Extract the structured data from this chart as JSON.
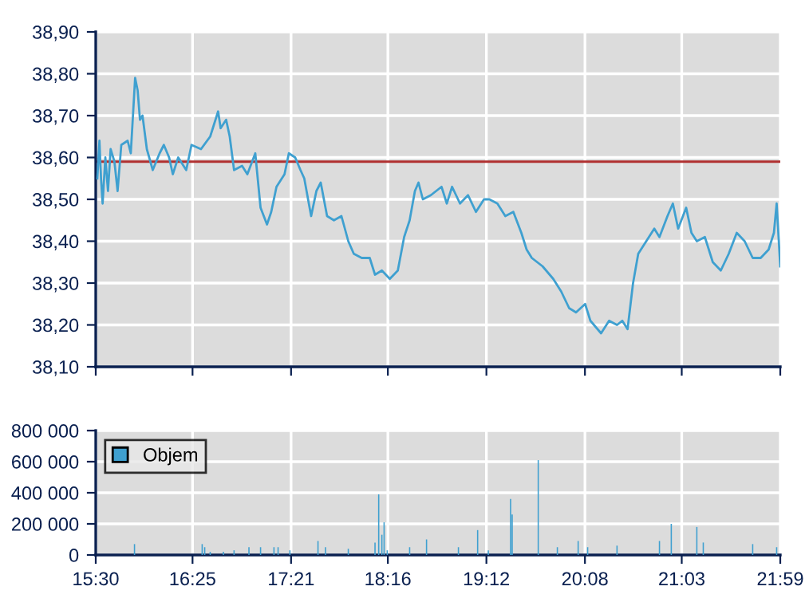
{
  "chart_data": [
    {
      "type": "line",
      "x": [
        15.515,
        15.535,
        15.55,
        15.565,
        15.591,
        15.616,
        15.641,
        15.677,
        15.707,
        15.742,
        15.802,
        15.832,
        15.873,
        15.897,
        15.919,
        15.943,
        15.984,
        16.04,
        16.105,
        16.145,
        16.195,
        16.23,
        16.281,
        16.357,
        16.407,
        16.497,
        16.584,
        16.659,
        16.683,
        16.735,
        16.769,
        16.81,
        16.886,
        16.936,
        17.011,
        17.061,
        17.122,
        17.162,
        17.212,
        17.288,
        17.329,
        17.389,
        17.439,
        17.475,
        17.54,
        17.59,
        17.631,
        17.691,
        17.756,
        17.827,
        17.892,
        17.944,
        18.019,
        18.095,
        18.145,
        18.21,
        18.285,
        18.361,
        18.421,
        18.473,
        18.523,
        18.557,
        18.598,
        18.674,
        18.775,
        18.825,
        18.875,
        18.95,
        19.026,
        19.101,
        19.177,
        19.228,
        19.304,
        19.379,
        19.455,
        19.531,
        19.581,
        19.63,
        19.732,
        19.833,
        19.908,
        19.984,
        20.049,
        20.135,
        20.185,
        20.286,
        20.362,
        20.437,
        20.487,
        20.537,
        20.589,
        20.638,
        20.714,
        20.79,
        20.839,
        20.915,
        20.966,
        21.016,
        21.092,
        21.142,
        21.193,
        21.269,
        21.344,
        21.42,
        21.495,
        21.571,
        21.646,
        21.722,
        21.798,
        21.873,
        21.923,
        21.949,
        21.983
      ],
      "series": [
        {
          "color": "#3fa0d0",
          "values": [
            38.55,
            38.64,
            38.55,
            38.49,
            38.6,
            38.52,
            38.62,
            38.59,
            38.52,
            38.63,
            38.64,
            38.61,
            38.79,
            38.76,
            38.69,
            38.7,
            38.62,
            38.57,
            38.61,
            38.63,
            38.6,
            38.56,
            38.6,
            38.57,
            38.63,
            38.62,
            38.65,
            38.71,
            38.67,
            38.69,
            38.65,
            38.57,
            38.58,
            38.56,
            38.61,
            38.48,
            38.44,
            38.47,
            38.53,
            38.56,
            38.61,
            38.6,
            38.57,
            38.55,
            38.46,
            38.52,
            38.54,
            38.46,
            38.45,
            38.46,
            38.4,
            38.37,
            38.36,
            38.36,
            38.32,
            38.33,
            38.31,
            38.33,
            38.41,
            38.45,
            38.52,
            38.54,
            38.5,
            38.51,
            38.53,
            38.49,
            38.53,
            38.49,
            38.51,
            38.47,
            38.5,
            38.5,
            38.49,
            38.46,
            38.47,
            38.42,
            38.38,
            38.36,
            38.34,
            38.31,
            38.28,
            38.24,
            38.23,
            38.25,
            38.21,
            38.18,
            38.21,
            38.2,
            38.21,
            38.19,
            38.3,
            38.37,
            38.4,
            38.43,
            38.41,
            38.46,
            38.49,
            38.43,
            38.48,
            38.42,
            38.4,
            38.41,
            38.35,
            38.33,
            38.37,
            38.42,
            38.4,
            38.36,
            38.36,
            38.38,
            38.42,
            38.49,
            38.34
          ]
        }
      ],
      "xlim": [
        15.5,
        21.9833
      ],
      "xticks": [
        {
          "value": 15.5,
          "label": null
        },
        {
          "value": 16.4167,
          "label": null
        },
        {
          "value": 17.35,
          "label": null
        },
        {
          "value": 18.2667,
          "label": null
        },
        {
          "value": 19.2,
          "label": null
        },
        {
          "value": 20.1333,
          "label": null
        },
        {
          "value": 21.05,
          "label": null
        },
        {
          "value": 21.9833,
          "label": null
        }
      ],
      "ylim": [
        38.1,
        38.9
      ],
      "yticks": [
        {
          "value": 38.1,
          "label": "38,10"
        },
        {
          "value": 38.2,
          "label": "38,20"
        },
        {
          "value": 38.3,
          "label": "38,30"
        },
        {
          "value": 38.4,
          "label": "38,40"
        },
        {
          "value": 38.5,
          "label": "38,50"
        },
        {
          "value": 38.6,
          "label": "38,60"
        },
        {
          "value": 38.7,
          "label": "38,70"
        },
        {
          "value": 38.8,
          "label": "38,80"
        },
        {
          "value": 38.9,
          "label": "38,90"
        }
      ],
      "ref_lines": [
        {
          "axis": "y",
          "value": 38.59,
          "color": "#b03030"
        }
      ],
      "grid": true,
      "tick_labels": "y",
      "legend": false
    },
    {
      "type": "bar",
      "x": [
        15.867,
        16.508,
        16.532,
        16.584,
        16.709,
        16.81,
        16.951,
        17.061,
        17.188,
        17.227,
        17.339,
        17.605,
        17.676,
        17.892,
        18.145,
        18.18,
        18.21,
        18.231,
        18.261,
        18.473,
        18.633,
        18.935,
        19.117,
        19.218,
        19.429,
        19.444,
        19.691,
        19.872,
        20.069,
        20.159,
        20.437,
        20.839,
        20.951,
        21.193,
        21.254,
        21.722,
        21.949
      ],
      "series": [
        {
          "name": "Objem",
          "color": "#3fa0d0",
          "values": [
            70000,
            70000,
            50000,
            20000,
            20000,
            30000,
            50000,
            50000,
            50000,
            50000,
            30000,
            90000,
            50000,
            40000,
            80000,
            390000,
            130000,
            210000,
            30000,
            50000,
            100000,
            50000,
            160000,
            30000,
            360000,
            260000,
            610000,
            50000,
            90000,
            50000,
            60000,
            90000,
            200000,
            180000,
            80000,
            70000,
            50000
          ]
        }
      ],
      "xlim": [
        15.5,
        21.9833
      ],
      "xticks": [
        {
          "value": 15.5,
          "label": "15:30"
        },
        {
          "value": 16.4167,
          "label": "16:25"
        },
        {
          "value": 17.35,
          "label": "17:21"
        },
        {
          "value": 18.2667,
          "label": "18:16"
        },
        {
          "value": 19.2,
          "label": "19:12"
        },
        {
          "value": 20.1333,
          "label": "20:08"
        },
        {
          "value": 21.05,
          "label": "21:03"
        },
        {
          "value": 21.9833,
          "label": "21:59"
        }
      ],
      "ylim": [
        0,
        800000
      ],
      "yticks": [
        0,
        {
          "value": 200000,
          "label": "200 000"
        },
        {
          "value": 400000,
          "label": "400 000"
        },
        {
          "value": 600000,
          "label": "600 000"
        },
        {
          "value": 800000,
          "label": "800 000"
        }
      ],
      "grid": true,
      "legend": "top left"
    }
  ]
}
